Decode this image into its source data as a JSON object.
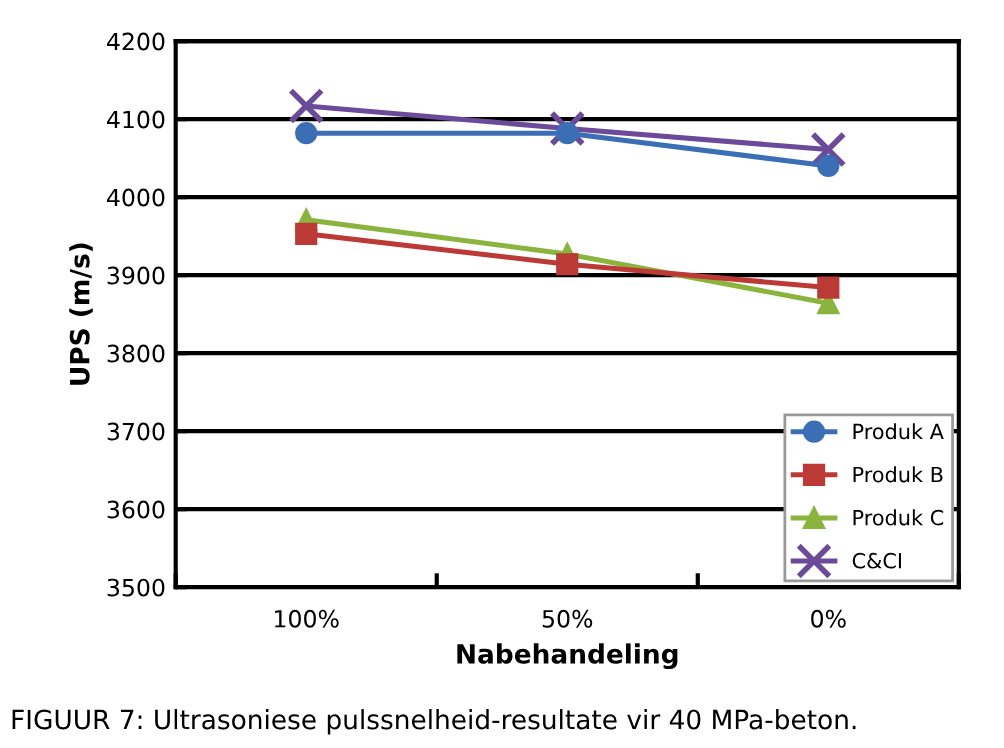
{
  "chart_data": {
    "type": "line",
    "xlabel": "Nabehandeling",
    "ylabel": "UPS (m/s)",
    "categories": [
      "100%",
      "50%",
      "0%"
    ],
    "series": [
      {
        "name": "Produk A",
        "color": "#3a6fb5",
        "marker": "circle",
        "values": [
          4082,
          4082,
          4040
        ]
      },
      {
        "name": "Produk B",
        "color": "#bc3a36",
        "marker": "square",
        "values": [
          3953,
          3914,
          3884
        ]
      },
      {
        "name": "Produk C",
        "color": "#8ab43c",
        "marker": "triangle",
        "values": [
          3971,
          3927,
          3864
        ]
      },
      {
        "name": "C&CI",
        "color": "#6b4a9a",
        "marker": "cross",
        "values": [
          4117,
          4088,
          4061
        ]
      }
    ],
    "ylim": [
      3500,
      4200
    ],
    "yticks": [
      3500,
      3600,
      3700,
      3800,
      3900,
      4000,
      4100,
      4200
    ],
    "grid": "y",
    "legend": "bottom right",
    "annotations": [
      "FIGUUR 7: Ultrasoniese pulssnelheid-resultate vir 40 MPa-beton."
    ]
  }
}
